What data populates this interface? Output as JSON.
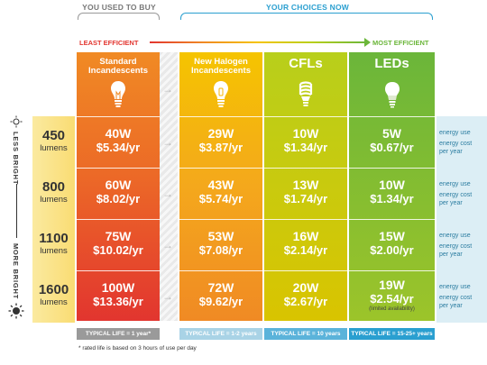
{
  "header": {
    "you_used_to_buy": "YOU USED TO BUY",
    "your_choices_now": "YOUR CHOICES NOW",
    "least_efficient": "LEAST EFFICIENT",
    "most_efficient": "MOST EFFICIENT"
  },
  "scale": {
    "less_bright": "LESS BRIGHT",
    "more_bright": "MORE BRIGHT"
  },
  "columns": [
    {
      "title": "Standard Incandescents",
      "bulb": "incandescent-bulb-icon",
      "color_top": "#f08a24",
      "color_bottom": "#e2352f",
      "rows": [
        {
          "watts": "40W",
          "cost": "$5.34/yr"
        },
        {
          "watts": "60W",
          "cost": "$8.02/yr"
        },
        {
          "watts": "75W",
          "cost": "$10.02/yr"
        },
        {
          "watts": "100W",
          "cost": "$13.36/yr"
        }
      ],
      "life": "TYPICAL LIFE = 1 year*"
    },
    {
      "title": "New Halogen Incandescents",
      "bulb": "halogen-bulb-icon",
      "color_top": "#f5c400",
      "color_bottom": "#f08a24",
      "rows": [
        {
          "watts": "29W",
          "cost": "$3.87/yr"
        },
        {
          "watts": "43W",
          "cost": "$5.74/yr"
        },
        {
          "watts": "53W",
          "cost": "$7.08/yr"
        },
        {
          "watts": "72W",
          "cost": "$9.62/yr"
        }
      ],
      "life": "TYPICAL LIFE = 1-2 years"
    },
    {
      "title": "CFLs",
      "bulb": "cfl-bulb-icon",
      "color_top": "#b8cf1b",
      "color_bottom": "#d9c400",
      "rows": [
        {
          "watts": "10W",
          "cost": "$1.34/yr"
        },
        {
          "watts": "13W",
          "cost": "$1.74/yr"
        },
        {
          "watts": "16W",
          "cost": "$2.14/yr"
        },
        {
          "watts": "20W",
          "cost": "$2.67/yr"
        }
      ],
      "life": "TYPICAL LIFE = 10 years"
    },
    {
      "title": "LEDs",
      "bulb": "led-bulb-icon",
      "color_top": "#6bb63a",
      "color_bottom": "#9cc42a",
      "rows": [
        {
          "watts": "5W",
          "cost": "$0.67/yr"
        },
        {
          "watts": "10W",
          "cost": "$1.34/yr"
        },
        {
          "watts": "15W",
          "cost": "$2.00/yr"
        },
        {
          "watts": "19W",
          "cost": "$2.54/yr",
          "note": "(limited availability)"
        }
      ],
      "life": "TYPICAL LIFE = 15-25+ years"
    }
  ],
  "lumens": [
    {
      "value": "450",
      "unit": "lumens"
    },
    {
      "value": "800",
      "unit": "lumens"
    },
    {
      "value": "1100",
      "unit": "lumens"
    },
    {
      "value": "1600",
      "unit": "lumens"
    }
  ],
  "legend": {
    "energy_use": "energy use",
    "energy_cost": "energy cost per year"
  },
  "footnote": "* rated life is based on 3 hours of use per day"
}
